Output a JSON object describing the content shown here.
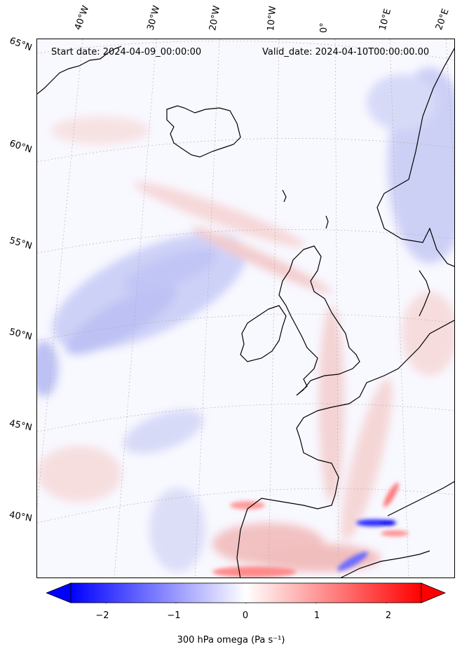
{
  "header": {
    "start_date": "Start date: 2024-04-09_00:00:00",
    "valid_date": "Valid_date: 2024-04-10T00:00:00.00"
  },
  "lon_labels": [
    "40°W",
    "30°W",
    "20°W",
    "10°W",
    "0°",
    "10°E",
    "20°E"
  ],
  "lat_labels": [
    "65°N",
    "60°N",
    "55°N",
    "50°N",
    "45°N",
    "40°N"
  ],
  "colorbar": {
    "label": "300 hPa omega (Pa s⁻¹)",
    "ticks": [
      "−2",
      "−1",
      "0",
      "1",
      "2"
    ],
    "range": [
      -2.5,
      2.5
    ],
    "colormap": "bwr",
    "extend": "both"
  },
  "colors": {
    "negative": "#0000ff",
    "zero": "#ffffff",
    "positive": "#ff0000",
    "coast": "#000000"
  }
}
